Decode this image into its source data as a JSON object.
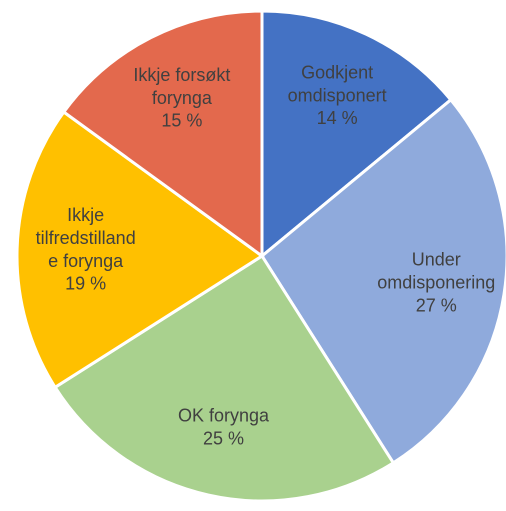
{
  "chart_data": {
    "type": "pie",
    "categories": [
      "Godkjent\nomdisponert",
      "Under\nomdisponering",
      "OK forynga",
      "Ikkje\ntilfredstilland\ne forynga",
      "Ikkje forsøkt\nforynga"
    ],
    "values": [
      14,
      27,
      25,
      19,
      15
    ],
    "value_labels": [
      "14 %",
      "27 %",
      "25 %",
      "19 %",
      "15 %"
    ],
    "colors": [
      "#4472c4",
      "#8faadc",
      "#a9d18e",
      "#ffc000",
      "#e3694d"
    ]
  }
}
